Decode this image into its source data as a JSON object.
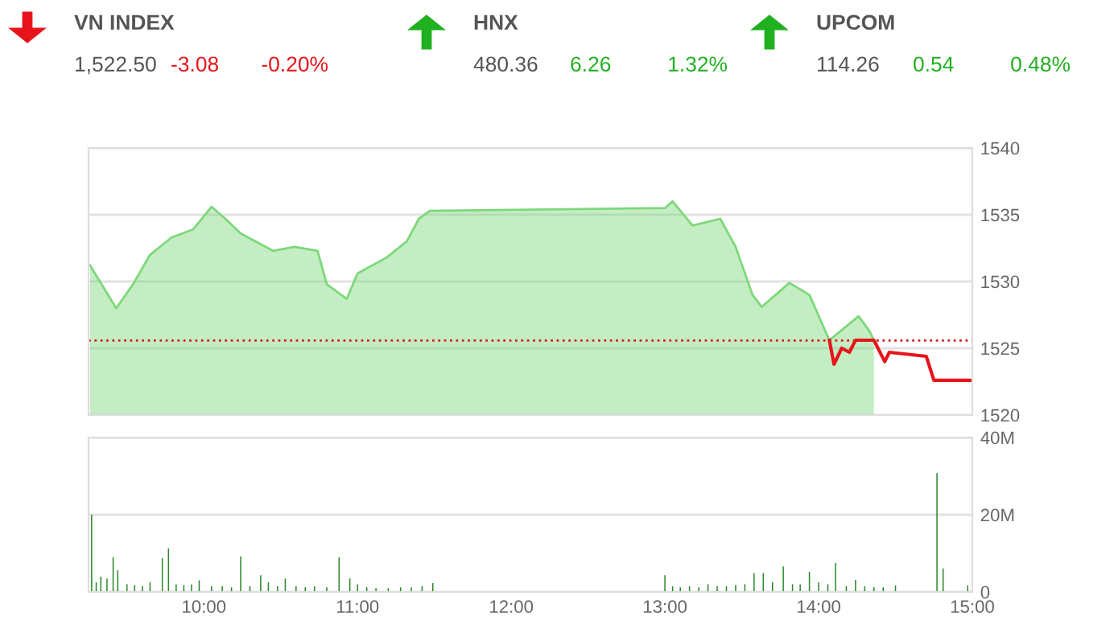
{
  "chart_data": [
    {
      "type": "other",
      "categories": [
        "VN INDEX",
        "HNX",
        "UPCOM"
      ],
      "value_labels": [
        "1,522.50",
        "480.36",
        "114.26"
      ],
      "annotations": [
        "-3.08",
        "-0.20%",
        "6.26",
        "1.32%",
        "0.54",
        "0.48%"
      ],
      "colors": [
        "#e8141b",
        "#20b020",
        "#20b020"
      ]
    },
    {
      "type": "area",
      "xlim": [
        9.25,
        15
      ],
      "ylim": [
        1520,
        1540
      ],
      "yticks": [
        1520,
        1525,
        1530,
        1535,
        1540
      ],
      "tick_labels": "y",
      "grid": "y",
      "ref_lines": [
        {
          "axis": "y",
          "value": 1525.58,
          "color": "#d62020",
          "line_style": "dotted"
        }
      ],
      "series": [
        {
          "type": "area",
          "color": "#7dd87a",
          "x": [
            9.26,
            9.43,
            9.54,
            9.65,
            9.79,
            9.93,
            10.05,
            10.14,
            10.24,
            10.45,
            10.59,
            10.74,
            10.8,
            10.93,
            11.0,
            11.19,
            11.32,
            11.4,
            11.47,
            13.0,
            13.05,
            13.18,
            13.36,
            13.46,
            13.57,
            13.63,
            13.81,
            13.94,
            14.07,
            14.26,
            14.33,
            14.36
          ],
          "values": [
            1531.2,
            1528.0,
            1529.8,
            1532.0,
            1533.3,
            1533.9,
            1535.6,
            1534.7,
            1533.6,
            1532.3,
            1532.6,
            1532.3,
            1529.8,
            1528.7,
            1530.6,
            1531.8,
            1533.0,
            1534.7,
            1535.3,
            1535.5,
            1536.0,
            1534.2,
            1534.7,
            1532.6,
            1529.0,
            1528.1,
            1529.9,
            1529.0,
            1525.6,
            1527.4,
            1526.3,
            1525.6
          ]
        },
        {
          "type": "line",
          "color": "#e8141b",
          "x": [
            14.07,
            14.1,
            14.15,
            14.2,
            14.24,
            14.36,
            14.43,
            14.46,
            14.7,
            14.75,
            14.99
          ],
          "values": [
            1525.6,
            1523.8,
            1525.0,
            1524.7,
            1525.6,
            1525.6,
            1524.0,
            1524.7,
            1524.4,
            1522.6,
            1522.6
          ]
        }
      ]
    },
    {
      "type": "bar",
      "xlim": [
        9.25,
        15
      ],
      "ylim": [
        0,
        40
      ],
      "yticks": [
        {
          "value": 0,
          "label": "0"
        },
        {
          "value": 20,
          "label": "20M"
        },
        {
          "value": 40,
          "label": "40M"
        }
      ],
      "xticks": [
        {
          "value": 10,
          "label": "10:00"
        },
        {
          "value": 11,
          "label": "11:00"
        },
        {
          "value": 12,
          "label": "12:00"
        },
        {
          "value": 13,
          "label": "13:00"
        },
        {
          "value": 14,
          "label": "14:00"
        },
        {
          "value": 15,
          "label": "15:00"
        }
      ],
      "grid": "y",
      "series": [
        {
          "color": "#2a8a2a",
          "x": [
            9.27,
            9.3,
            9.33,
            9.37,
            9.41,
            9.44,
            9.5,
            9.55,
            9.6,
            9.65,
            9.73,
            9.77,
            9.82,
            9.87,
            9.92,
            9.97,
            10.05,
            10.12,
            10.18,
            10.24,
            10.3,
            10.37,
            10.42,
            10.48,
            10.53,
            10.6,
            10.66,
            10.72,
            10.8,
            10.88,
            10.95,
            11.0,
            11.06,
            11.12,
            11.2,
            11.28,
            11.35,
            11.42,
            11.49,
            13.0,
            13.05,
            13.1,
            13.16,
            13.22,
            13.28,
            13.34,
            13.4,
            13.46,
            13.52,
            13.58,
            13.64,
            13.7,
            13.77,
            13.83,
            13.88,
            13.94,
            14.0,
            14.06,
            14.11,
            14.18,
            14.24,
            14.3,
            14.36,
            14.42,
            14.5,
            14.77,
            14.81,
            14.97
          ],
          "values": [
            20,
            2.5,
            4,
            3.5,
            9,
            5.6,
            2,
            1.8,
            1.5,
            2.5,
            8.7,
            11.3,
            2,
            1.8,
            2,
            3,
            1.5,
            1.5,
            1.2,
            9.2,
            1.5,
            4.3,
            2.5,
            1.5,
            3.5,
            1.5,
            1.2,
            1.5,
            1.2,
            9,
            3.5,
            2,
            1.2,
            1,
            1,
            1.2,
            1.2,
            1.5,
            2.3,
            4.3,
            1.5,
            1.2,
            1.5,
            1.2,
            2,
            1.5,
            1.5,
            1.8,
            2,
            4.9,
            4.9,
            2.5,
            6.6,
            2,
            2,
            5.2,
            2.5,
            2,
            7.5,
            1.5,
            3.1,
            1.5,
            1.2,
            1.2,
            1.7,
            30.8,
            6.1,
            1.7
          ]
        }
      ]
    }
  ]
}
